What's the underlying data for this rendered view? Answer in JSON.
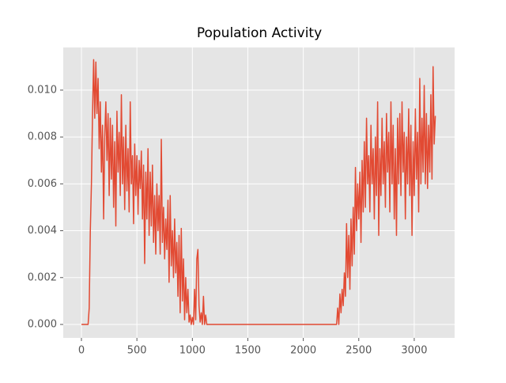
{
  "chart_data": {
    "type": "line",
    "title": "Population Activity",
    "color": "#E24A33",
    "grid": true,
    "x": [
      0,
      60,
      70,
      80,
      90,
      100,
      110,
      120,
      130,
      140,
      150,
      160,
      170,
      180,
      190,
      200,
      210,
      220,
      230,
      240,
      250,
      260,
      270,
      280,
      290,
      300,
      310,
      320,
      330,
      340,
      350,
      360,
      370,
      380,
      390,
      400,
      410,
      420,
      430,
      440,
      450,
      460,
      470,
      480,
      490,
      500,
      510,
      520,
      530,
      540,
      550,
      560,
      570,
      580,
      590,
      600,
      610,
      620,
      630,
      640,
      650,
      660,
      670,
      680,
      690,
      700,
      710,
      720,
      730,
      740,
      750,
      760,
      770,
      780,
      790,
      800,
      810,
      820,
      830,
      840,
      850,
      860,
      870,
      880,
      890,
      900,
      910,
      920,
      930,
      940,
      950,
      960,
      970,
      980,
      990,
      1000,
      1010,
      1020,
      1030,
      1040,
      1050,
      1060,
      1070,
      1080,
      1090,
      1100,
      1110,
      1120,
      1130,
      2300,
      2310,
      2320,
      2330,
      2340,
      2350,
      2360,
      2370,
      2380,
      2390,
      2400,
      2410,
      2420,
      2430,
      2440,
      2450,
      2460,
      2470,
      2480,
      2490,
      2500,
      2510,
      2520,
      2530,
      2540,
      2550,
      2560,
      2570,
      2580,
      2590,
      2600,
      2610,
      2620,
      2630,
      2640,
      2650,
      2660,
      2670,
      2680,
      2690,
      2700,
      2710,
      2720,
      2730,
      2740,
      2750,
      2760,
      2770,
      2780,
      2790,
      2800,
      2810,
      2820,
      2830,
      2840,
      2850,
      2860,
      2870,
      2880,
      2890,
      2900,
      2910,
      2920,
      2930,
      2940,
      2950,
      2960,
      2970,
      2980,
      2990,
      3000,
      3010,
      3020,
      3030,
      3040,
      3050,
      3060,
      3070,
      3080,
      3090,
      3100,
      3110,
      3120,
      3130,
      3140,
      3150,
      3160,
      3170,
      3180,
      3190
    ],
    "values": [
      0,
      0,
      0.0007,
      0.004,
      0.006,
      0.009,
      0.0113,
      0.0088,
      0.0112,
      0.009,
      0.0105,
      0.0075,
      0.0095,
      0.0065,
      0.0085,
      0.0045,
      0.008,
      0.0095,
      0.007,
      0.009,
      0.0055,
      0.0088,
      0.0062,
      0.0085,
      0.005,
      0.0078,
      0.0042,
      0.0091,
      0.0065,
      0.0082,
      0.0055,
      0.0098,
      0.006,
      0.008,
      0.0049,
      0.0085,
      0.0057,
      0.0075,
      0.0048,
      0.0095,
      0.006,
      0.0072,
      0.0043,
      0.0077,
      0.0055,
      0.0072,
      0.0047,
      0.007,
      0.0058,
      0.0074,
      0.0045,
      0.0068,
      0.0026,
      0.0065,
      0.0045,
      0.0075,
      0.0038,
      0.0065,
      0.0042,
      0.0068,
      0.0035,
      0.0055,
      0.003,
      0.006,
      0.004,
      0.0055,
      0.003,
      0.0079,
      0.0035,
      0.005,
      0.0028,
      0.0045,
      0.0032,
      0.0053,
      0.0018,
      0.0055,
      0.0025,
      0.004,
      0.002,
      0.0045,
      0.0022,
      0.0035,
      0.0012,
      0.0038,
      0.0005,
      0.0041,
      0.001,
      0.0028,
      0.0002,
      0.002,
      0.0005,
      0.0015,
      0.0001,
      0.0004,
      0,
      0.0003,
      0,
      0.0015,
      0.0002,
      0.0028,
      0.0032,
      0.0008,
      0.0001,
      0.0005,
      0,
      0.0012,
      0,
      0.0004,
      0,
      0,
      0.0007,
      0,
      0.0013,
      0.0005,
      0.0015,
      0.0008,
      0.0022,
      0.0012,
      0.0043,
      0.002,
      0.0038,
      0.0015,
      0.0045,
      0.0025,
      0.005,
      0.003,
      0.0067,
      0.004,
      0.006,
      0.0045,
      0.0065,
      0.0035,
      0.007,
      0.0048,
      0.0078,
      0.005,
      0.0088,
      0.006,
      0.0072,
      0.0048,
      0.0085,
      0.006,
      0.0075,
      0.0045,
      0.008,
      0.0055,
      0.0095,
      0.0038,
      0.0075,
      0.0055,
      0.0088,
      0.006,
      0.0078,
      0.005,
      0.009,
      0.0065,
      0.0082,
      0.0048,
      0.0095,
      0.006,
      0.0085,
      0.0045,
      0.0075,
      0.0038,
      0.0088,
      0.006,
      0.009,
      0.0055,
      0.0095,
      0.0065,
      0.0082,
      0.0045,
      0.008,
      0.006,
      0.0092,
      0.0055,
      0.0085,
      0.0038,
      0.0078,
      0.0055,
      0.0092,
      0.0062,
      0.0082,
      0.0048,
      0.0105,
      0.006,
      0.0088,
      0.0065,
      0.0102,
      0.006,
      0.009,
      0.0058,
      0.0085,
      0.0065,
      0.0098,
      0.0062,
      0.011,
      0.0077,
      0.0089
    ],
    "xlim": [
      -164,
      3364
    ],
    "xticks": [
      0,
      500,
      1000,
      1500,
      2000,
      2500,
      3000
    ],
    "ylim": [
      -0.000574,
      0.01182
    ],
    "yticks": [
      {
        "value": 0,
        "label": "0.000"
      },
      {
        "value": 0.002,
        "label": "0.002"
      },
      {
        "value": 0.004,
        "label": "0.004"
      },
      {
        "value": 0.006,
        "label": "0.006"
      },
      {
        "value": 0.008,
        "label": "0.008"
      },
      {
        "value": 0.01,
        "label": "0.010"
      }
    ]
  }
}
